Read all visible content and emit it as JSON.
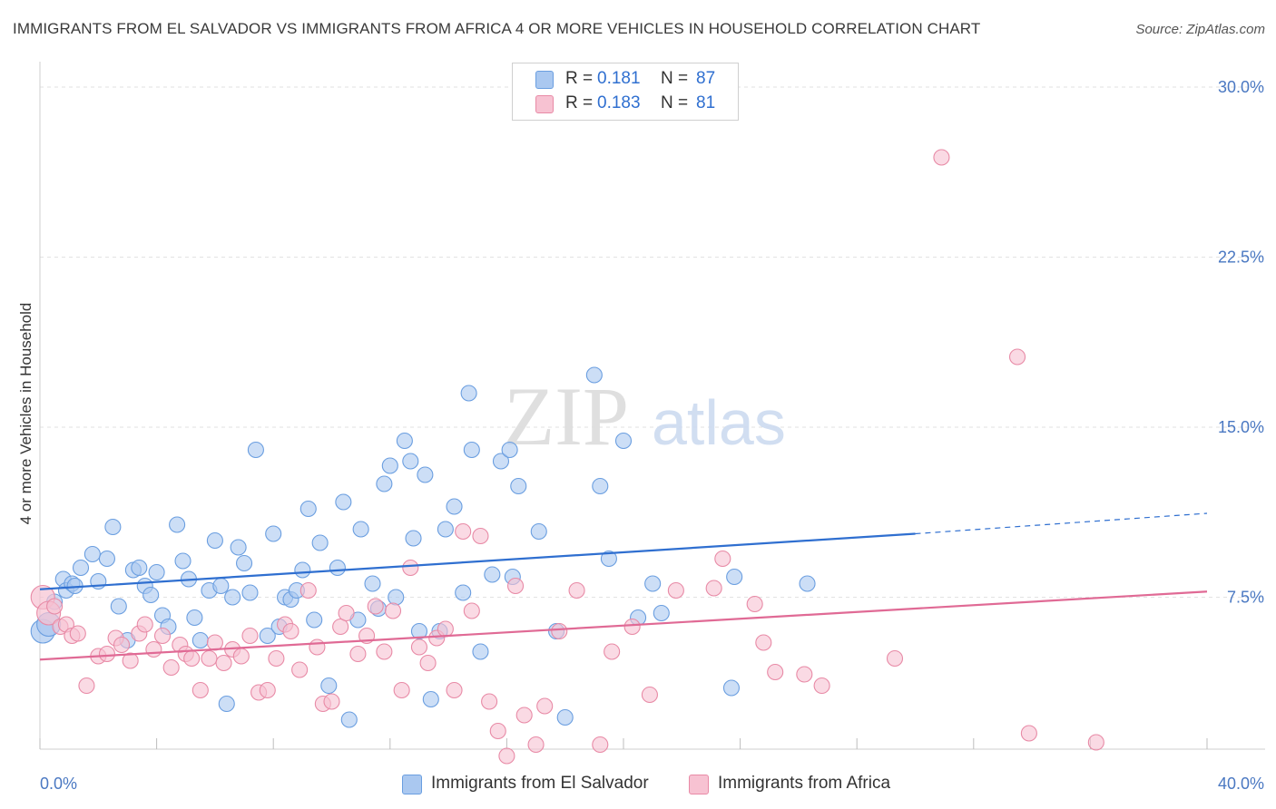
{
  "header": {
    "title": "IMMIGRANTS FROM EL SALVADOR VS IMMIGRANTS FROM AFRICA 4 OR MORE VEHICLES IN HOUSEHOLD CORRELATION CHART",
    "source": "Source: ZipAtlas.com"
  },
  "watermark": {
    "zip": "ZIP",
    "atlas": "atlas"
  },
  "stats_legend": {
    "rows": [
      {
        "r_label": "R =",
        "r_value": "0.181",
        "n_label": "N =",
        "n_value": "87",
        "color": "#a8c8f0"
      },
      {
        "r_label": "R =",
        "r_value": "0.183",
        "n_label": "N =",
        "n_value": "81",
        "color": "#f5b8cb"
      }
    ]
  },
  "chart_data": {
    "type": "scatter",
    "ylabel": "4 or more Vehicles in Household",
    "x_range": [
      0,
      40
    ],
    "y_range": [
      0,
      30
    ],
    "x_tick_labels": [
      "0.0%",
      "40.0%"
    ],
    "y_tick_labels": [
      "7.5%",
      "15.0%",
      "22.5%",
      "30.0%"
    ],
    "y_ticks": [
      7.5,
      15.0,
      22.5,
      30.0
    ],
    "grid": "horizontal dashed",
    "legend_position": "bottom-center",
    "series": [
      {
        "name": "Immigrants from El Salvador",
        "color": "#6a9ee0",
        "fill": "#aac8f0",
        "trend": {
          "x0": 0,
          "y0": 7.85,
          "x1": 30,
          "y1": 10.3,
          "dashed_to_x": 40,
          "dashed_to_y": 11.2,
          "line_color": "#2f6fd0"
        },
        "points": [
          [
            0.1,
            6.0
          ],
          [
            0.3,
            6.3
          ],
          [
            0.5,
            7.3
          ],
          [
            0.8,
            8.3
          ],
          [
            0.9,
            7.8
          ],
          [
            1.1,
            8.1
          ],
          [
            1.2,
            8.0
          ],
          [
            1.4,
            8.8
          ],
          [
            1.8,
            9.4
          ],
          [
            2.0,
            8.2
          ],
          [
            2.3,
            9.2
          ],
          [
            2.5,
            10.6
          ],
          [
            2.7,
            7.1
          ],
          [
            3.0,
            5.6
          ],
          [
            3.2,
            8.7
          ],
          [
            3.4,
            8.8
          ],
          [
            3.6,
            8.0
          ],
          [
            3.8,
            7.6
          ],
          [
            4.0,
            8.6
          ],
          [
            4.2,
            6.7
          ],
          [
            4.4,
            6.2
          ],
          [
            4.7,
            10.7
          ],
          [
            4.9,
            9.1
          ],
          [
            5.1,
            8.3
          ],
          [
            5.3,
            6.6
          ],
          [
            5.5,
            5.6
          ],
          [
            5.8,
            7.8
          ],
          [
            6.0,
            10.0
          ],
          [
            6.2,
            8.0
          ],
          [
            6.4,
            2.8
          ],
          [
            6.6,
            7.5
          ],
          [
            6.8,
            9.7
          ],
          [
            7.0,
            9.0
          ],
          [
            7.2,
            7.7
          ],
          [
            7.4,
            14.0
          ],
          [
            7.8,
            5.8
          ],
          [
            8.0,
            10.3
          ],
          [
            8.2,
            6.2
          ],
          [
            8.4,
            7.5
          ],
          [
            8.6,
            7.4
          ],
          [
            8.8,
            7.8
          ],
          [
            9.0,
            8.7
          ],
          [
            9.2,
            11.4
          ],
          [
            9.4,
            6.5
          ],
          [
            9.6,
            9.9
          ],
          [
            9.9,
            3.6
          ],
          [
            10.2,
            8.8
          ],
          [
            10.4,
            11.7
          ],
          [
            10.6,
            2.1
          ],
          [
            10.9,
            6.5
          ],
          [
            11.0,
            10.5
          ],
          [
            11.4,
            8.1
          ],
          [
            11.6,
            7.0
          ],
          [
            11.8,
            12.5
          ],
          [
            12.0,
            13.3
          ],
          [
            12.2,
            7.5
          ],
          [
            12.5,
            14.4
          ],
          [
            12.7,
            13.5
          ],
          [
            12.8,
            10.1
          ],
          [
            13.0,
            6.0
          ],
          [
            13.2,
            12.9
          ],
          [
            13.4,
            3.0
          ],
          [
            13.7,
            6.0
          ],
          [
            13.9,
            10.5
          ],
          [
            14.2,
            11.5
          ],
          [
            14.5,
            7.7
          ],
          [
            14.7,
            16.5
          ],
          [
            14.8,
            14.0
          ],
          [
            15.1,
            5.1
          ],
          [
            15.5,
            8.5
          ],
          [
            15.8,
            13.5
          ],
          [
            16.1,
            14.0
          ],
          [
            16.2,
            8.4
          ],
          [
            16.4,
            12.4
          ],
          [
            17.1,
            10.4
          ],
          [
            17.7,
            6.0
          ],
          [
            18.0,
            2.2
          ],
          [
            19.0,
            17.3
          ],
          [
            19.2,
            12.4
          ],
          [
            19.5,
            9.2
          ],
          [
            20.0,
            14.4
          ],
          [
            20.5,
            6.6
          ],
          [
            21.0,
            8.1
          ],
          [
            21.3,
            6.8
          ],
          [
            23.7,
            3.5
          ],
          [
            23.8,
            8.4
          ],
          [
            26.3,
            8.1
          ]
        ]
      },
      {
        "name": "Immigrants from Africa",
        "color": "#e88aa6",
        "fill": "#f7c2d2",
        "trend": {
          "x0": 0,
          "y0": 4.75,
          "x1": 40,
          "y1": 7.75,
          "line_color": "#e06a95"
        },
        "points": [
          [
            0.1,
            7.5
          ],
          [
            0.3,
            6.8
          ],
          [
            0.5,
            7.1
          ],
          [
            0.7,
            6.2
          ],
          [
            0.9,
            6.3
          ],
          [
            1.1,
            5.8
          ],
          [
            1.3,
            5.9
          ],
          [
            1.6,
            3.6
          ],
          [
            2.0,
            4.9
          ],
          [
            2.3,
            5.0
          ],
          [
            2.6,
            5.7
          ],
          [
            2.8,
            5.4
          ],
          [
            3.1,
            4.7
          ],
          [
            3.4,
            5.9
          ],
          [
            3.6,
            6.3
          ],
          [
            3.9,
            5.2
          ],
          [
            4.2,
            5.8
          ],
          [
            4.5,
            4.4
          ],
          [
            4.8,
            5.4
          ],
          [
            5.0,
            5.0
          ],
          [
            5.2,
            4.8
          ],
          [
            5.5,
            3.4
          ],
          [
            5.8,
            4.8
          ],
          [
            6.0,
            5.5
          ],
          [
            6.3,
            4.6
          ],
          [
            6.6,
            5.2
          ],
          [
            6.9,
            4.9
          ],
          [
            7.2,
            5.8
          ],
          [
            7.5,
            3.3
          ],
          [
            7.8,
            3.4
          ],
          [
            8.1,
            4.8
          ],
          [
            8.4,
            6.3
          ],
          [
            8.6,
            6.0
          ],
          [
            8.9,
            4.3
          ],
          [
            9.2,
            7.8
          ],
          [
            9.5,
            5.3
          ],
          [
            9.7,
            2.8
          ],
          [
            10.0,
            2.9
          ],
          [
            10.3,
            6.2
          ],
          [
            10.5,
            6.8
          ],
          [
            10.9,
            5.0
          ],
          [
            11.2,
            5.8
          ],
          [
            11.5,
            7.1
          ],
          [
            11.8,
            5.1
          ],
          [
            12.1,
            6.9
          ],
          [
            12.4,
            3.4
          ],
          [
            12.7,
            8.8
          ],
          [
            13.0,
            5.3
          ],
          [
            13.3,
            4.6
          ],
          [
            13.6,
            5.7
          ],
          [
            13.9,
            6.1
          ],
          [
            14.2,
            3.4
          ],
          [
            14.5,
            10.4
          ],
          [
            14.8,
            6.9
          ],
          [
            15.1,
            10.2
          ],
          [
            15.4,
            2.9
          ],
          [
            15.7,
            1.6
          ],
          [
            16.0,
            0.5
          ],
          [
            16.3,
            8.0
          ],
          [
            16.6,
            2.3
          ],
          [
            17.0,
            1.0
          ],
          [
            17.3,
            2.7
          ],
          [
            17.8,
            6.0
          ],
          [
            18.4,
            7.8
          ],
          [
            19.2,
            1.0
          ],
          [
            19.6,
            5.1
          ],
          [
            20.3,
            6.2
          ],
          [
            20.9,
            3.2
          ],
          [
            21.8,
            7.8
          ],
          [
            23.1,
            7.9
          ],
          [
            23.4,
            9.2
          ],
          [
            24.5,
            7.2
          ],
          [
            24.8,
            5.5
          ],
          [
            25.2,
            4.2
          ],
          [
            26.2,
            4.1
          ],
          [
            26.8,
            3.6
          ],
          [
            29.3,
            4.8
          ],
          [
            30.9,
            26.9
          ],
          [
            33.5,
            18.1
          ],
          [
            33.9,
            1.5
          ],
          [
            36.2,
            1.1
          ]
        ]
      }
    ]
  },
  "bottom_legend": {
    "items": [
      {
        "label": "Immigrants from El Salvador",
        "color": "#aac8f0"
      },
      {
        "label": "Immigrants from Africa",
        "color": "#f7c2d2"
      }
    ]
  }
}
